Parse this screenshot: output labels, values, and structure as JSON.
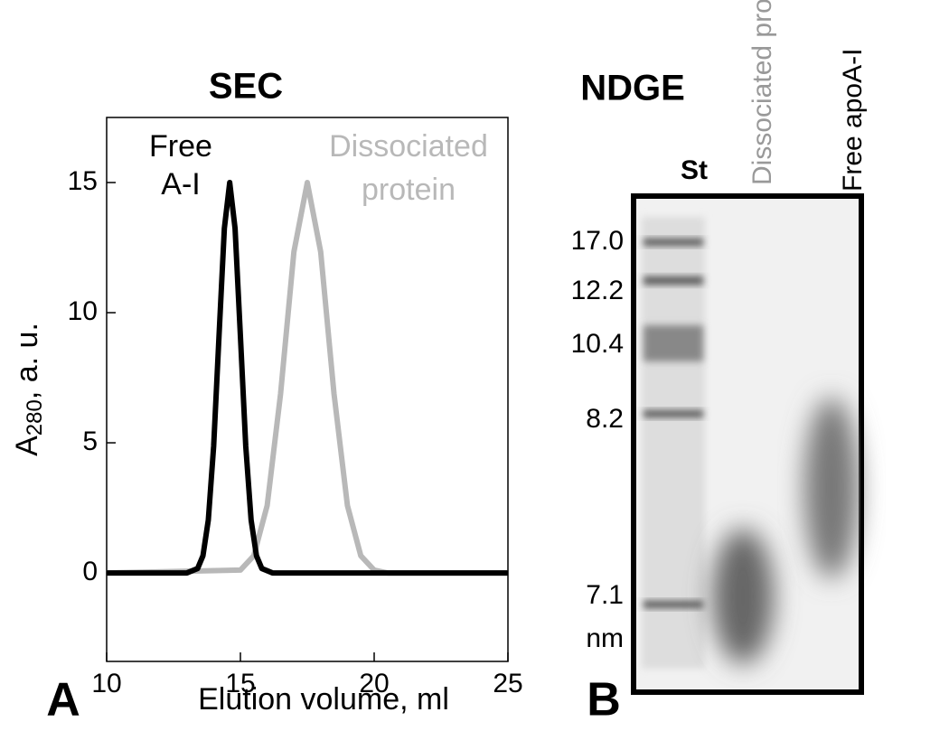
{
  "chart_data": {
    "type": "line",
    "title": "SEC",
    "panel": "A",
    "xlabel": "Elution volume, ml",
    "ylabel": [
      "A",
      "280",
      ", a. u."
    ],
    "xlim": [
      10,
      25
    ],
    "ylim": [
      -3.4,
      17.5
    ],
    "xticks": [
      10,
      15,
      20,
      25
    ],
    "yticks": [
      0,
      5,
      10,
      15
    ],
    "series": [
      {
        "name": [
          "Free",
          "A-I"
        ],
        "color": "#000000",
        "x": [
          10,
          13,
          13.4,
          13.6,
          13.8,
          14.0,
          14.2,
          14.4,
          14.6,
          14.8,
          15.0,
          15.2,
          15.4,
          15.6,
          15.8,
          16.2,
          25
        ],
        "values": [
          0,
          0,
          0.17,
          0.66,
          2.03,
          4.87,
          9.1,
          13.24,
          15,
          13.24,
          9.1,
          4.87,
          2.03,
          0.66,
          0.17,
          0,
          0
        ]
      },
      {
        "name": [
          "Dissociated",
          "protein"
        ],
        "color": "#b8b8b8",
        "x": [
          10,
          15,
          15.5,
          16,
          16.5,
          17,
          17.5,
          18,
          18.5,
          19,
          19.5,
          20,
          20.5,
          25
        ],
        "values": [
          0,
          0.11,
          0.66,
          2.59,
          6.87,
          12.34,
          15,
          12.34,
          6.87,
          2.59,
          0.66,
          0.11,
          0,
          0
        ]
      }
    ]
  },
  "gel": {
    "title": "NDGE",
    "panel": "B",
    "lanes": [
      "St",
      "Dissociated protein",
      "Free apoA-I"
    ],
    "markers": [
      "17.0",
      "12.2",
      "10.4",
      "8.2",
      "7.1"
    ],
    "unit": "nm"
  }
}
